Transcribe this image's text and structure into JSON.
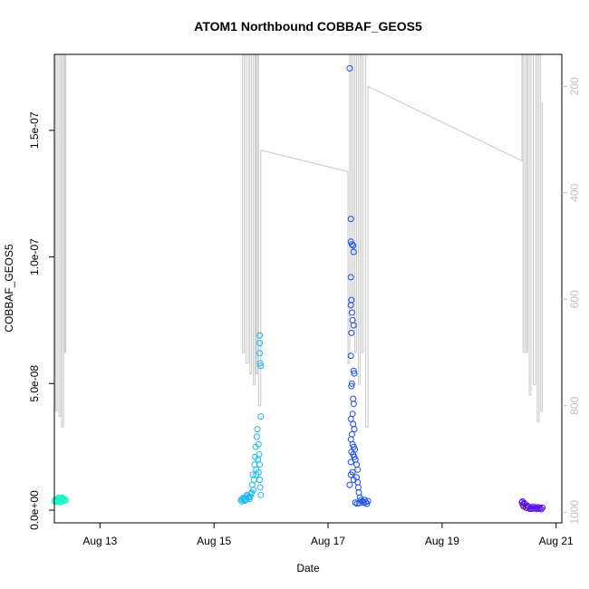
{
  "chart_data": {
    "type": "scatter",
    "title": "ATOM1 Northbound COBBAF_GEOS5",
    "xlabel": "Date",
    "ylabel": "COBBAF_GEOS5",
    "xlim": [
      12.2,
      21.1
    ],
    "ylim": [
      -5e-09,
      1.8e-07
    ],
    "x_ticks": [
      {
        "value": 13,
        "label": "Aug 13"
      },
      {
        "value": 15,
        "label": "Aug 15"
      },
      {
        "value": 17,
        "label": "Aug 17"
      },
      {
        "value": 19,
        "label": "Aug 19"
      },
      {
        "value": 21,
        "label": "Aug 21"
      }
    ],
    "y_ticks": [
      {
        "value": 0,
        "label": "0.0e+00"
      },
      {
        "value": 5e-08,
        "label": "5.0e-08"
      },
      {
        "value": 1e-07,
        "label": "1.0e-07"
      },
      {
        "value": 1.5e-07,
        "label": "1.5e-07"
      }
    ],
    "secondary_axis": {
      "description": "pressure (hPa), inverted",
      "range": [
        1020,
        140
      ],
      "ticks": [
        {
          "value": 200,
          "label": "200"
        },
        {
          "value": 400,
          "label": "400"
        },
        {
          "value": 600,
          "label": "600"
        },
        {
          "value": 800,
          "label": "800"
        },
        {
          "value": 1000,
          "label": "1000"
        }
      ],
      "color": "#c0c0c0"
    },
    "pressure_trace": {
      "color": "#c8c8c8",
      "points": [
        [
          12.2,
          780
        ],
        [
          12.2,
          140
        ],
        [
          12.22,
          140
        ],
        [
          12.22,
          810
        ],
        [
          12.25,
          810
        ],
        [
          12.25,
          140
        ],
        [
          12.28,
          140
        ],
        [
          12.28,
          820
        ],
        [
          12.31,
          820
        ],
        [
          12.31,
          140
        ],
        [
          12.33,
          140
        ],
        [
          12.33,
          840
        ],
        [
          12.36,
          840
        ],
        [
          12.36,
          140
        ],
        [
          12.38,
          140
        ],
        [
          12.38,
          700
        ],
        [
          12.4,
          700
        ],
        [
          12.4,
          140
        ],
        [
          15.5,
          140
        ],
        [
          15.5,
          700
        ],
        [
          15.53,
          700
        ],
        [
          15.53,
          140
        ],
        [
          15.56,
          140
        ],
        [
          15.56,
          720
        ],
        [
          15.6,
          720
        ],
        [
          15.6,
          140
        ],
        [
          15.63,
          140
        ],
        [
          15.63,
          740
        ],
        [
          15.66,
          740
        ],
        [
          15.66,
          140
        ],
        [
          15.69,
          140
        ],
        [
          15.69,
          760
        ],
        [
          15.72,
          760
        ],
        [
          15.72,
          140
        ],
        [
          15.74,
          140
        ],
        [
          15.74,
          740
        ],
        [
          15.76,
          740
        ],
        [
          15.76,
          140
        ],
        [
          15.78,
          140
        ],
        [
          15.78,
          800
        ],
        [
          15.82,
          800
        ],
        [
          15.82,
          320
        ],
        [
          17.35,
          360
        ],
        [
          17.35,
          720
        ],
        [
          17.38,
          720
        ],
        [
          17.38,
          140
        ],
        [
          17.41,
          140
        ],
        [
          17.41,
          620
        ],
        [
          17.44,
          620
        ],
        [
          17.44,
          140
        ],
        [
          17.47,
          140
        ],
        [
          17.47,
          700
        ],
        [
          17.5,
          700
        ],
        [
          17.5,
          140
        ],
        [
          17.53,
          140
        ],
        [
          17.53,
          760
        ],
        [
          17.56,
          760
        ],
        [
          17.56,
          140
        ],
        [
          17.59,
          140
        ],
        [
          17.59,
          700
        ],
        [
          17.62,
          700
        ],
        [
          17.62,
          140
        ],
        [
          17.66,
          140
        ],
        [
          17.66,
          840
        ],
        [
          17.7,
          840
        ],
        [
          17.7,
          200
        ],
        [
          20.4,
          340
        ],
        [
          20.4,
          140
        ],
        [
          20.42,
          140
        ],
        [
          20.42,
          700
        ],
        [
          20.45,
          700
        ],
        [
          20.45,
          140
        ],
        [
          20.48,
          140
        ],
        [
          20.48,
          700
        ],
        [
          20.5,
          700
        ],
        [
          20.5,
          140
        ],
        [
          20.53,
          140
        ],
        [
          20.53,
          780
        ],
        [
          20.56,
          780
        ],
        [
          20.56,
          140
        ],
        [
          20.6,
          140
        ],
        [
          20.6,
          760
        ],
        [
          20.64,
          760
        ],
        [
          20.64,
          140
        ],
        [
          20.67,
          140
        ],
        [
          20.67,
          830
        ],
        [
          20.7,
          830
        ],
        [
          20.7,
          140
        ],
        [
          20.73,
          140
        ],
        [
          20.73,
          810
        ],
        [
          20.76,
          810
        ],
        [
          20.76,
          230
        ]
      ]
    },
    "series": [
      {
        "color": "#13f5c4",
        "points": [
          [
            12.2,
            3.5e-09
          ],
          [
            12.22,
            4.2e-09
          ],
          [
            12.24,
            3.8e-09
          ],
          [
            12.26,
            4.5e-09
          ],
          [
            12.28,
            3.9e-09
          ],
          [
            12.3,
            4.8e-09
          ],
          [
            12.31,
            3.6e-09
          ],
          [
            12.33,
            4.1e-09
          ],
          [
            12.35,
            4.6e-09
          ],
          [
            12.36,
            3.7e-09
          ],
          [
            12.38,
            4.3e-09
          ],
          [
            12.4,
            3.9e-09
          ],
          [
            12.23,
            3.3e-09
          ],
          [
            12.27,
            4.9e-09
          ],
          [
            12.32,
            3.4e-09
          ],
          [
            12.37,
            4e-09
          ],
          [
            12.29,
            3.1e-09
          ],
          [
            12.34,
            5e-09
          ]
        ]
      },
      {
        "color": "#18b8f0",
        "points": [
          [
            15.47,
            4e-09
          ],
          [
            15.5,
            4.5e-09
          ],
          [
            15.52,
            5e-09
          ],
          [
            15.54,
            3.8e-09
          ],
          [
            15.56,
            4.2e-09
          ],
          [
            15.58,
            6e-09
          ],
          [
            15.6,
            5e-09
          ],
          [
            15.62,
            4.4e-09
          ],
          [
            15.64,
            5.5e-09
          ],
          [
            15.66,
            7e-09
          ],
          [
            15.67,
            1e-08
          ],
          [
            15.68,
            1.4e-08
          ],
          [
            15.7,
            1.2e-08
          ],
          [
            15.71,
            1.8e-08
          ],
          [
            15.72,
            2.1e-08
          ],
          [
            15.73,
            2.5e-08
          ],
          [
            15.74,
            1.6e-08
          ],
          [
            15.75,
            2.9e-08
          ],
          [
            15.76,
            3.2e-08
          ],
          [
            15.77,
            2e-08
          ],
          [
            15.78,
            1.5e-08
          ],
          [
            15.79,
            2.2e-08
          ],
          [
            15.8,
            1.8e-08
          ],
          [
            15.8,
            1.2e-08
          ],
          [
            15.81,
            9e-09
          ],
          [
            15.82,
            6e-09
          ],
          [
            15.8,
            6.9e-08
          ],
          [
            15.8,
            6.6e-08
          ],
          [
            15.8,
            6.2e-08
          ],
          [
            15.81,
            5.8e-08
          ],
          [
            15.82,
            5.7e-08
          ],
          [
            15.82,
            3.7e-08
          ],
          [
            15.78,
            2.6e-08
          ],
          [
            15.74,
            1.4e-08
          ],
          [
            15.69,
            8e-09
          ],
          [
            15.65,
            6.5e-09
          ],
          [
            15.61,
            5e-09
          ],
          [
            15.57,
            5.5e-09
          ],
          [
            15.53,
            4.2e-09
          ],
          [
            15.49,
            3.5e-09
          ]
        ]
      },
      {
        "color": "#1a4ee8",
        "points": [
          [
            17.38,
            1.745e-07
          ],
          [
            17.4,
            1.15e-07
          ],
          [
            17.4,
            1.06e-07
          ],
          [
            17.42,
            1.05e-07
          ],
          [
            17.44,
            1.045e-07
          ],
          [
            17.45,
            1.02e-07
          ],
          [
            17.4,
            9.2e-08
          ],
          [
            17.41,
            8.3e-08
          ],
          [
            17.4,
            8.1e-08
          ],
          [
            17.42,
            7.8e-08
          ],
          [
            17.43,
            7.5e-08
          ],
          [
            17.45,
            7.3e-08
          ],
          [
            17.41,
            7e-08
          ],
          [
            17.4,
            6.1e-08
          ],
          [
            17.45,
            5.5e-08
          ],
          [
            17.46,
            5.4e-08
          ],
          [
            17.42,
            5e-08
          ],
          [
            17.41,
            4.9e-08
          ],
          [
            17.44,
            4.4e-08
          ],
          [
            17.45,
            4.2e-08
          ],
          [
            17.43,
            3.8e-08
          ],
          [
            17.4,
            3.6e-08
          ],
          [
            17.44,
            3.4e-08
          ],
          [
            17.46,
            3.2e-08
          ],
          [
            17.42,
            3e-08
          ],
          [
            17.4,
            2.8e-08
          ],
          [
            17.43,
            2.6e-08
          ],
          [
            17.45,
            2.5e-08
          ],
          [
            17.47,
            2.4e-08
          ],
          [
            17.41,
            2.3e-08
          ],
          [
            17.44,
            2.2e-08
          ],
          [
            17.46,
            2.1e-08
          ],
          [
            17.48,
            2e-08
          ],
          [
            17.4,
            1.9e-08
          ],
          [
            17.5,
            1.8e-08
          ],
          [
            17.52,
            1.6e-08
          ],
          [
            17.4,
            1.4e-08
          ],
          [
            17.5,
            1.3e-08
          ],
          [
            17.52,
            1.1e-08
          ],
          [
            17.38,
            1e-08
          ],
          [
            17.53,
            9e-09
          ],
          [
            17.54,
            7e-09
          ],
          [
            17.56,
            5e-09
          ],
          [
            17.58,
            4e-09
          ],
          [
            17.6,
            3.5e-09
          ],
          [
            17.62,
            3e-09
          ],
          [
            17.64,
            4e-09
          ],
          [
            17.66,
            3.2e-09
          ],
          [
            17.68,
            2.5e-09
          ],
          [
            17.7,
            3.6e-09
          ],
          [
            17.55,
            2.8e-09
          ],
          [
            17.48,
            3e-09
          ],
          [
            17.51,
            2.6e-09
          ],
          [
            17.45,
            1.2e-08
          ],
          [
            17.43,
            1.5e-08
          ]
        ]
      },
      {
        "color": "#5a12dc",
        "points": [
          [
            20.4,
            3e-09
          ],
          [
            20.42,
            2.2e-09
          ],
          [
            20.43,
            1.5e-09
          ],
          [
            20.45,
            2.5e-09
          ],
          [
            20.47,
            1e-09
          ],
          [
            20.49,
            1.8e-09
          ],
          [
            20.5,
            8e-10
          ],
          [
            20.52,
            1.3e-09
          ],
          [
            20.54,
            5e-10
          ],
          [
            20.56,
            1.1e-09
          ],
          [
            20.58,
            6e-10
          ],
          [
            20.6,
            1.4e-09
          ],
          [
            20.62,
            7e-10
          ],
          [
            20.64,
            1e-09
          ],
          [
            20.66,
            5e-10
          ],
          [
            20.68,
            1.2e-09
          ],
          [
            20.7,
            6e-10
          ],
          [
            20.72,
            9e-10
          ],
          [
            20.74,
            4e-10
          ],
          [
            20.76,
            1e-09
          ],
          [
            20.41,
            3.5e-09
          ],
          [
            20.44,
            2.8e-09
          ]
        ]
      }
    ]
  }
}
